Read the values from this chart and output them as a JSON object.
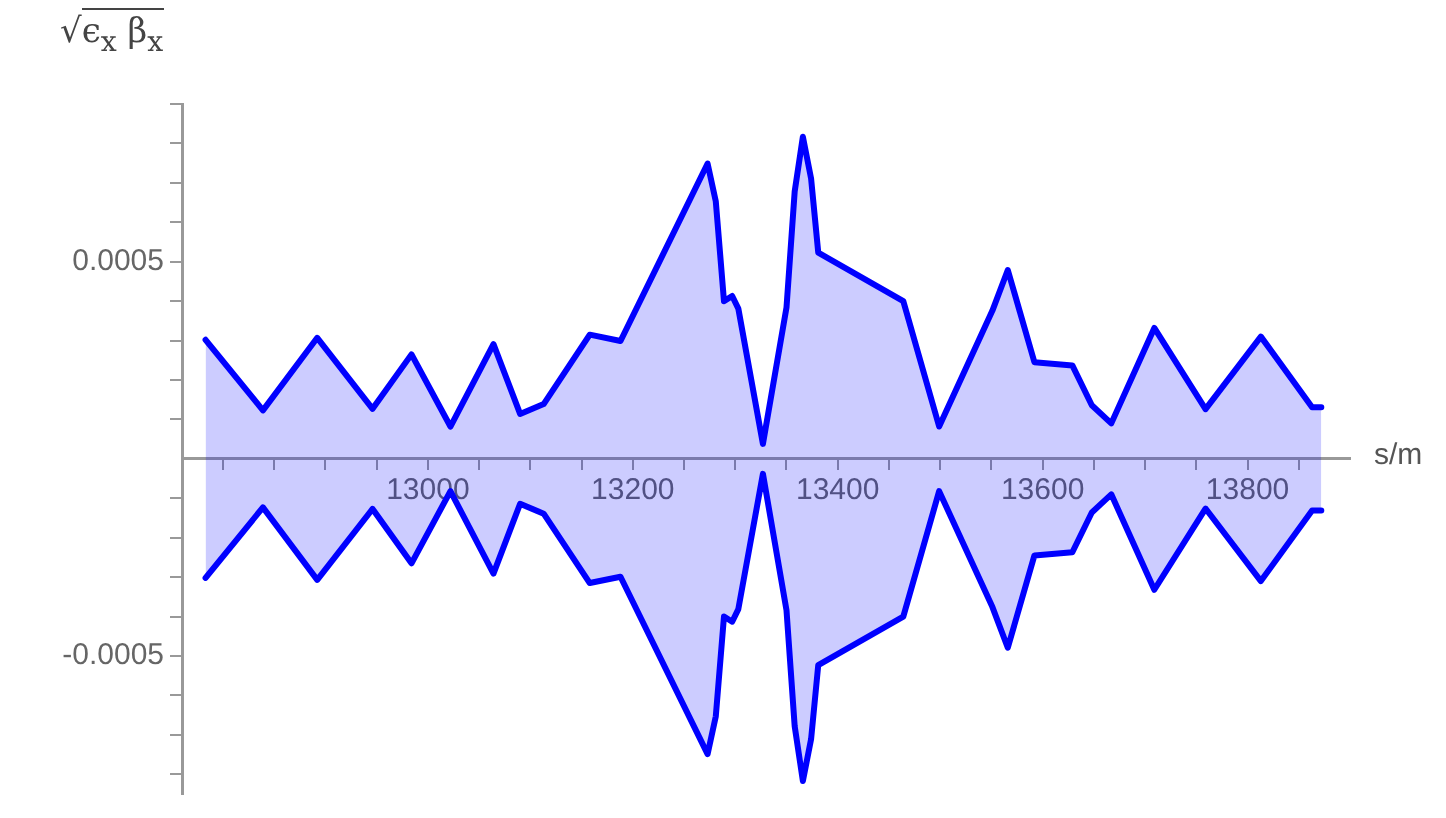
{
  "chart_data": {
    "type": "area",
    "ylabel": "√ϵ$_{x}$ β$_{x}$",
    "xlabel": "s/m",
    "xlim": [
      12760,
      13900
    ],
    "ylim": [
      -0.00085,
      0.0009
    ],
    "xticks": [
      {
        "value": 12800,
        "label": null
      },
      {
        "value": 12850,
        "label": null
      },
      {
        "value": 12900,
        "label": null
      },
      {
        "value": 12950,
        "label": null
      },
      13000,
      {
        "value": 13050,
        "label": null
      },
      {
        "value": 13100,
        "label": null
      },
      {
        "value": 13150,
        "label": null
      },
      13200,
      {
        "value": 13250,
        "label": null
      },
      {
        "value": 13300,
        "label": null
      },
      {
        "value": 13350,
        "label": null
      },
      13400,
      {
        "value": 13450,
        "label": null
      },
      {
        "value": 13500,
        "label": null
      },
      {
        "value": 13550,
        "label": null
      },
      13600,
      {
        "value": 13650,
        "label": null
      },
      {
        "value": 13700,
        "label": null
      },
      {
        "value": 13750,
        "label": null
      },
      13800,
      {
        "value": 13850,
        "label": null
      }
    ],
    "yticks": [
      {
        "value": -0.0008,
        "label": null
      },
      {
        "value": -0.0007,
        "label": null
      },
      {
        "value": -0.0006,
        "label": null
      },
      -0.0005,
      {
        "value": -0.0004,
        "label": null
      },
      {
        "value": -0.0003,
        "label": null
      },
      {
        "value": -0.0002,
        "label": null
      },
      {
        "value": -0.0001,
        "label": null
      },
      {
        "value": 0.0001,
        "label": null
      },
      {
        "value": 0.0002,
        "label": null
      },
      {
        "value": 0.0003,
        "label": null
      },
      {
        "value": 0.0004,
        "label": null
      },
      0.0005,
      {
        "value": 0.0006,
        "label": null
      },
      {
        "value": 0.0007,
        "label": null
      },
      {
        "value": 0.0008,
        "label": null
      },
      {
        "value": 0.0009,
        "label": null
      }
    ],
    "x": [
      12783,
      12839,
      12892,
      12946,
      12984,
      13022,
      13064,
      13090,
      13113,
      13158,
      13188,
      13273,
      13281,
      13289,
      13297,
      13303,
      13327,
      13350,
      13358,
      13366,
      13374,
      13381,
      13464,
      13499,
      13551,
      13566,
      13592,
      13629,
      13648,
      13667,
      13709,
      13759,
      13813,
      13863,
      13872
    ],
    "series": [
      {
        "color": "#0000ff",
        "values": [
          0.000302,
          0.000123,
          0.000307,
          0.000127,
          0.000265,
          8.2e-05,
          0.000291,
          0.000114,
          0.000139,
          0.000315,
          0.000299,
          0.000749,
          0.000653,
          0.0004,
          0.000413,
          0.000381,
          3.8e-05,
          0.000384,
          0.000678,
          0.000817,
          0.000711,
          0.000523,
          0.0004,
          8.2e-05,
          0.000376,
          0.000479,
          0.000245,
          0.000237,
          0.000136,
          9e-05,
          0.000332,
          0.000126,
          0.00031,
          0.000131,
          0.000131
        ]
      },
      {
        "color": "#0000ff",
        "values": [
          -0.000302,
          -0.000123,
          -0.000307,
          -0.000127,
          -0.000265,
          -8.2e-05,
          -0.000291,
          -0.000114,
          -0.000139,
          -0.000315,
          -0.000299,
          -0.000749,
          -0.000653,
          -0.0004,
          -0.000413,
          -0.000381,
          -3.8e-05,
          -0.000384,
          -0.000678,
          -0.000817,
          -0.000711,
          -0.000523,
          -0.0004,
          -8.2e-05,
          -0.000376,
          -0.000479,
          -0.000245,
          -0.000237,
          -0.000136,
          -9e-05,
          -0.000332,
          -0.000126,
          -0.00031,
          -0.000131,
          -0.000131
        ]
      }
    ],
    "grid": false,
    "legend": false
  }
}
